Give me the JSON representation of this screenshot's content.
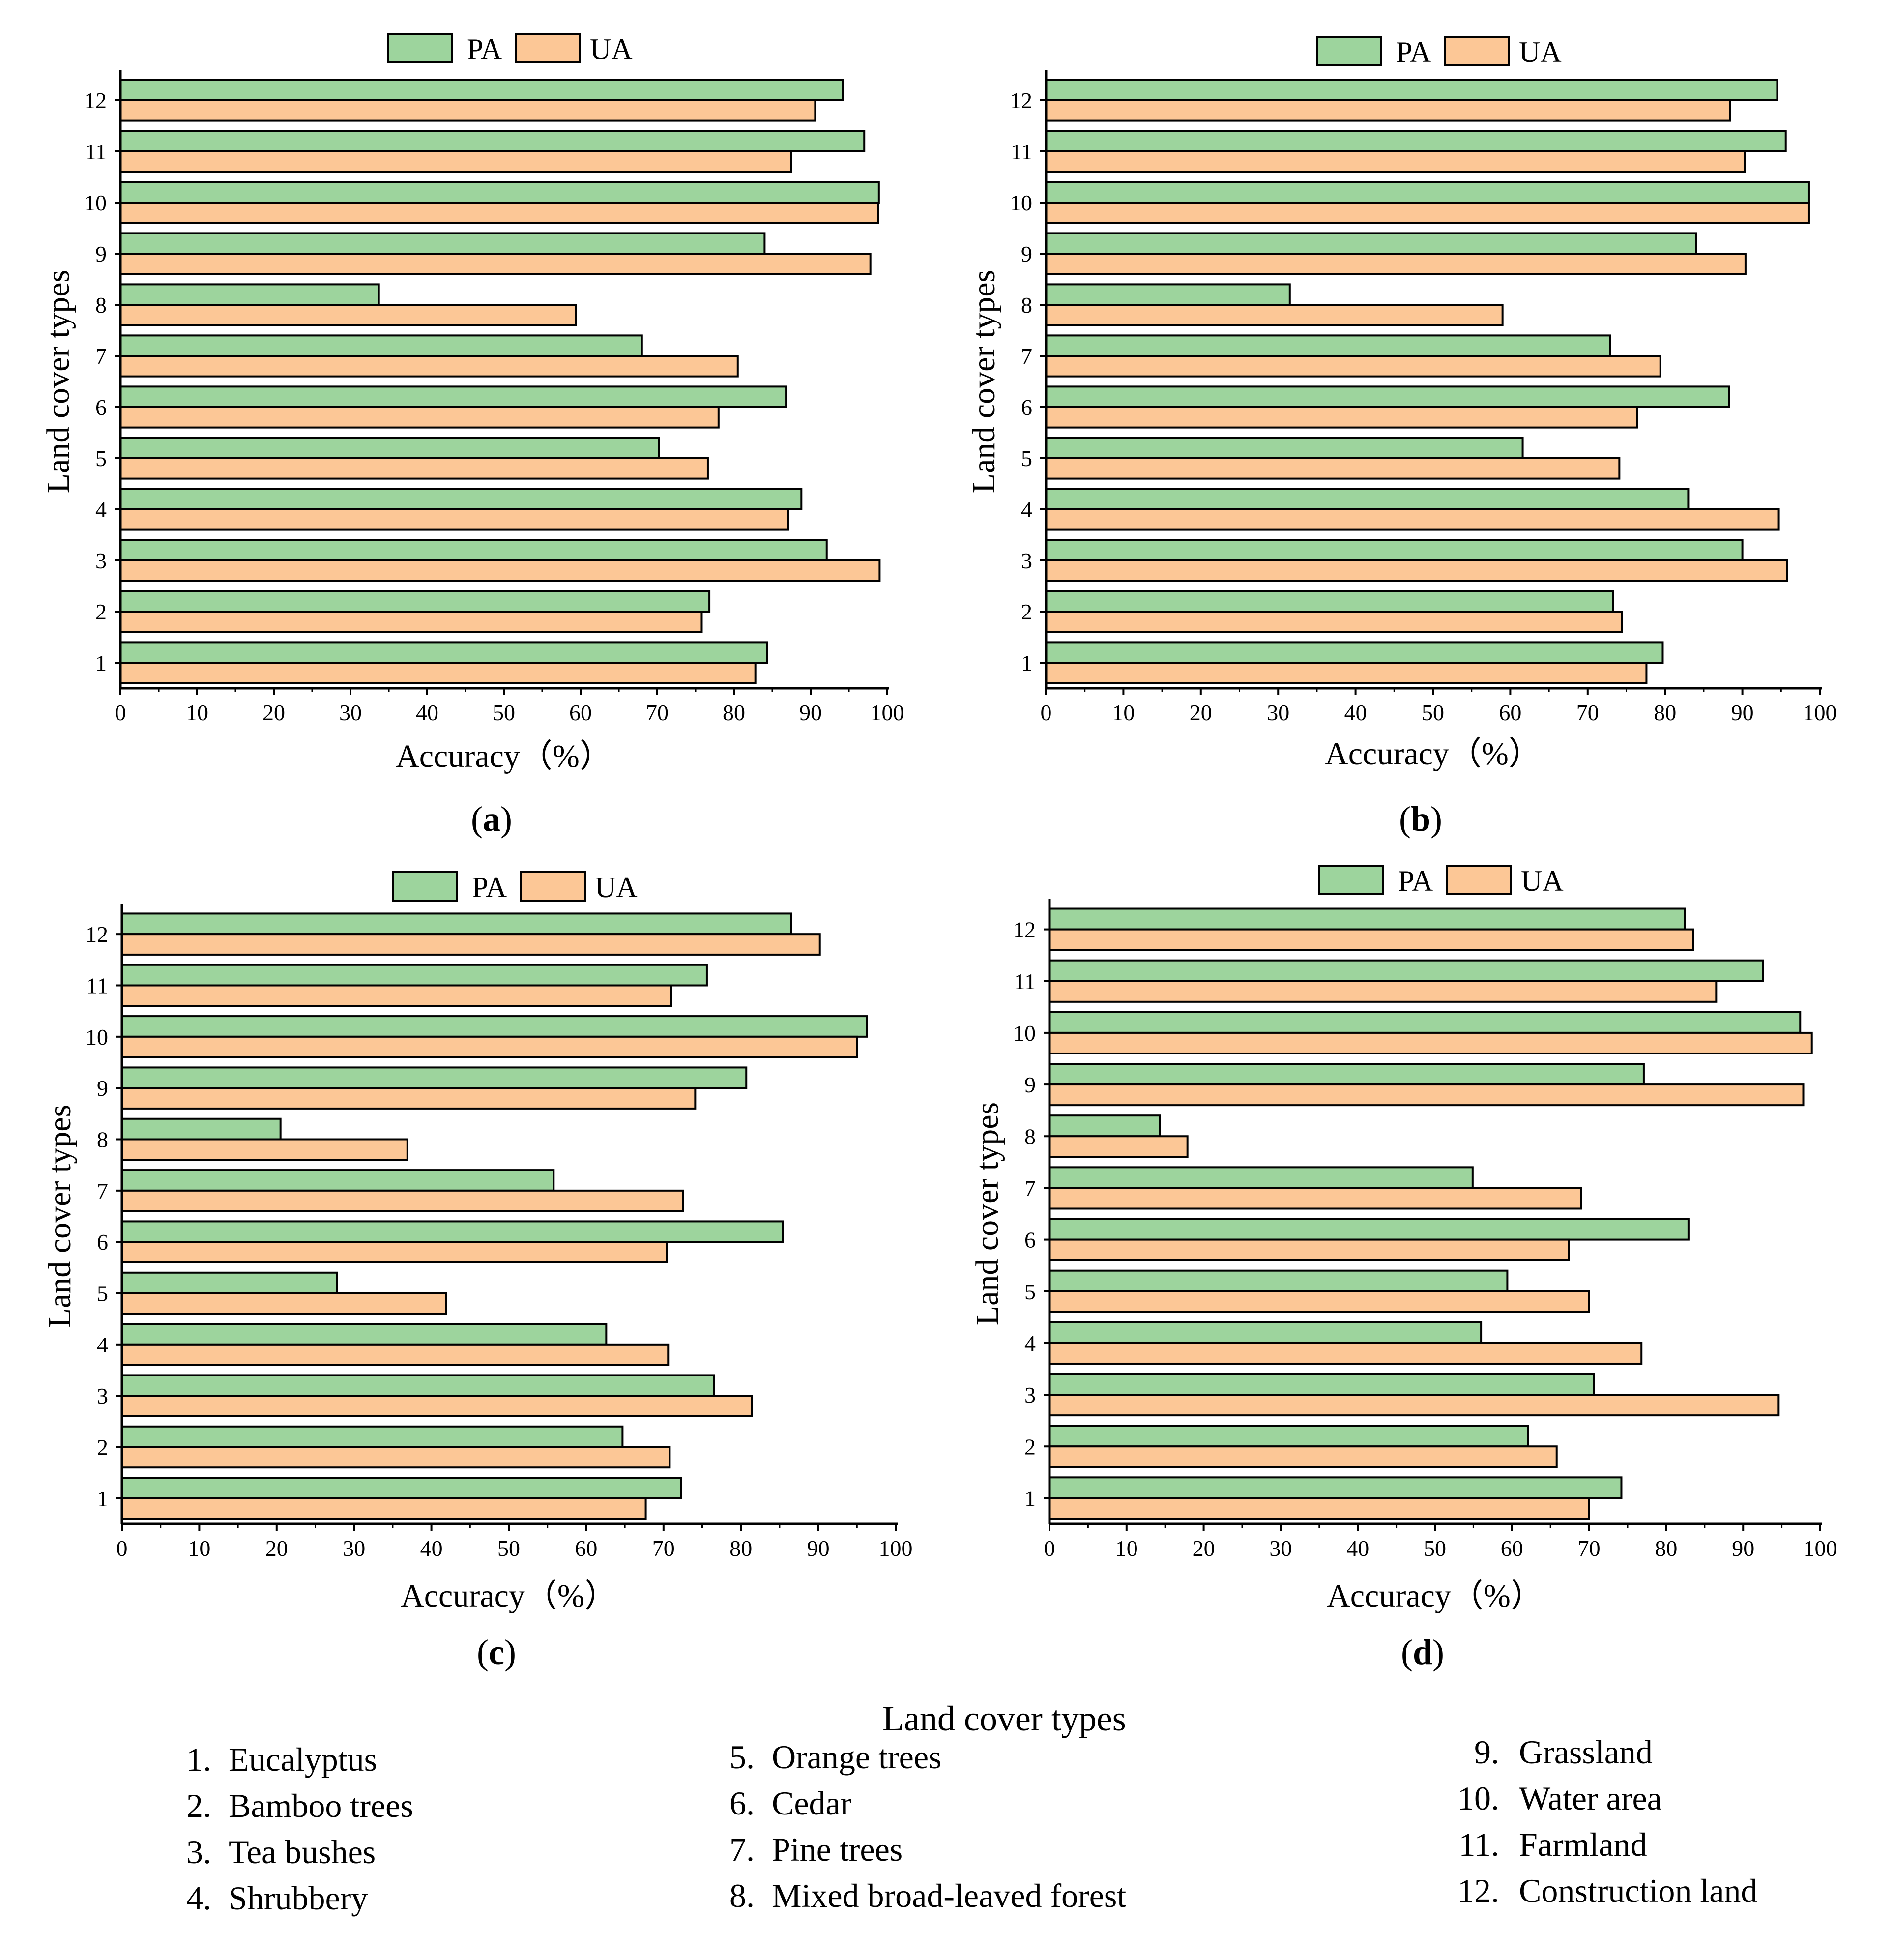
{
  "colors": {
    "pa": "#9dd49d",
    "ua": "#fcc796",
    "axis": "#000000"
  },
  "legend_labels": {
    "pa": "PA",
    "ua": "UA"
  },
  "chart_data": [
    {
      "type": "bar",
      "panel": "(a)",
      "orientation": "horizontal",
      "categories": [
        "1",
        "2",
        "3",
        "4",
        "5",
        "6",
        "7",
        "8",
        "9",
        "10",
        "11",
        "12"
      ],
      "series": [
        {
          "name": "PA",
          "values": [
            84.3,
            76.8,
            92.1,
            88.8,
            70.2,
            86.8,
            68.0,
            33.7,
            84.0,
            98.9,
            97.0,
            94.2
          ]
        },
        {
          "name": "UA",
          "values": [
            82.8,
            75.8,
            99.0,
            87.1,
            76.6,
            78.0,
            80.5,
            59.4,
            97.8,
            98.8,
            87.5,
            90.6
          ]
        }
      ],
      "xlabel": "Accuracy（%）",
      "ylabel": "Land cover types",
      "xlim": [
        0,
        100
      ],
      "xticks": [
        "0",
        "10",
        "20",
        "30",
        "40",
        "50",
        "60",
        "70",
        "80",
        "90",
        "100"
      ]
    },
    {
      "type": "bar",
      "panel": "(b)",
      "orientation": "horizontal",
      "categories": [
        "1",
        "2",
        "3",
        "4",
        "5",
        "6",
        "7",
        "8",
        "9",
        "10",
        "11",
        "12"
      ],
      "series": [
        {
          "name": "PA",
          "values": [
            79.7,
            73.3,
            90.0,
            83.0,
            61.6,
            88.3,
            72.9,
            31.5,
            84.0,
            98.6,
            95.6,
            94.5
          ]
        },
        {
          "name": "UA",
          "values": [
            77.6,
            74.4,
            95.8,
            94.7,
            74.1,
            76.4,
            79.4,
            59.0,
            90.4,
            98.6,
            90.3,
            88.4
          ]
        }
      ],
      "xlabel": "Accuracy（%）",
      "ylabel": "Land cover types",
      "xlim": [
        0,
        100
      ],
      "xticks": [
        "0",
        "10",
        "20",
        "30",
        "40",
        "50",
        "60",
        "70",
        "80",
        "90",
        "100"
      ]
    },
    {
      "type": "bar",
      "panel": "(c)",
      "orientation": "horizontal",
      "categories": [
        "1",
        "2",
        "3",
        "4",
        "5",
        "6",
        "7",
        "8",
        "9",
        "10",
        "11",
        "12"
      ],
      "series": [
        {
          "name": "PA",
          "values": [
            72.3,
            64.7,
            76.5,
            62.6,
            27.8,
            85.4,
            55.8,
            20.5,
            80.7,
            96.3,
            75.6,
            86.5
          ]
        },
        {
          "name": "UA",
          "values": [
            67.7,
            70.8,
            81.4,
            70.6,
            41.9,
            70.4,
            72.5,
            36.9,
            74.1,
            95.0,
            71.0,
            90.2
          ]
        }
      ],
      "xlabel": "Accuracy（%）",
      "ylabel": "Land cover types",
      "xlim": [
        0,
        100
      ],
      "xticks": [
        "0",
        "10",
        "20",
        "30",
        "40",
        "50",
        "60",
        "70",
        "80",
        "90",
        "100"
      ]
    },
    {
      "type": "bar",
      "panel": "(d)",
      "orientation": "horizontal",
      "categories": [
        "1",
        "2",
        "3",
        "4",
        "5",
        "6",
        "7",
        "8",
        "9",
        "10",
        "11",
        "12"
      ],
      "series": [
        {
          "name": "PA",
          "values": [
            74.2,
            62.1,
            70.6,
            56.0,
            59.4,
            82.9,
            54.9,
            14.3,
            77.1,
            97.4,
            92.6,
            82.4
          ]
        },
        {
          "name": "UA",
          "values": [
            70.0,
            65.8,
            94.6,
            76.8,
            70.0,
            67.4,
            69.0,
            17.9,
            97.8,
            98.9,
            86.5,
            83.5
          ]
        }
      ],
      "xlabel": "Accuracy（%）",
      "ylabel": "Land cover types",
      "xlim": [
        0,
        100
      ],
      "xticks": [
        "0",
        "10",
        "20",
        "30",
        "40",
        "50",
        "60",
        "70",
        "80",
        "90",
        "100"
      ]
    }
  ],
  "land_cover_legend": {
    "title": "Land cover types",
    "items": [
      {
        "num": "1.",
        "label": "Eucalyptus"
      },
      {
        "num": "2.",
        "label": "Bamboo trees"
      },
      {
        "num": "3.",
        "label": "Tea bushes"
      },
      {
        "num": "4.",
        "label": "Shrubbery"
      },
      {
        "num": "5.",
        "label": "Orange trees"
      },
      {
        "num": "6.",
        "label": "Cedar"
      },
      {
        "num": "7.",
        "label": "Pine trees"
      },
      {
        "num": "8.",
        "label": "Mixed broad-leaved forest"
      },
      {
        "num": "9.",
        "label": "Grassland"
      },
      {
        "num": "10.",
        "label": "Water area"
      },
      {
        "num": "11.",
        "label": "Farmland"
      },
      {
        "num": "12.",
        "label": "Construction land"
      }
    ]
  }
}
